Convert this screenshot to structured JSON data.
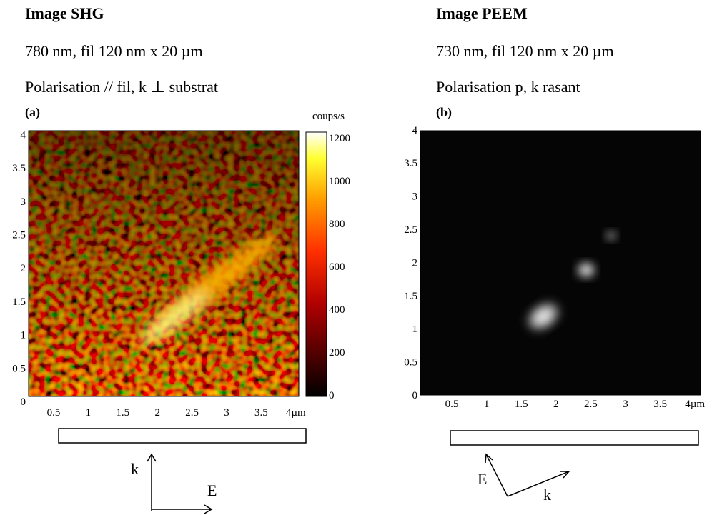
{
  "panels": [
    {
      "title": "Image SHG",
      "line1": "780 nm, fil 120 nm x 20 µm",
      "line2": "Polarisation // fil, k ⊥ substrat",
      "label": "(a)",
      "x_ticks": [
        "0.5",
        "1",
        "1.5",
        "2",
        "2.5",
        "3",
        "3.5",
        "4µm"
      ],
      "y_ticks": [
        "0",
        "0.5",
        "1",
        "1.5",
        "2",
        "2.5",
        "3",
        "3.5",
        "4"
      ],
      "colorbar_title": "coups/s",
      "colorbar_ticks": [
        "0",
        "200",
        "400",
        "600",
        "800",
        "1000",
        "1200"
      ],
      "arrow_labels": [
        "k",
        "E"
      ]
    },
    {
      "title": "Image PEEM",
      "line1": "730 nm, fil 120 nm x 20 µm",
      "line2": "Polarisation p, k rasant",
      "label": "(b)",
      "x_ticks": [
        "0.5",
        "1",
        "1.5",
        "2",
        "2.5",
        "3",
        "3.5",
        "4µm"
      ],
      "y_ticks": [
        "0",
        "0.5",
        "1",
        "1.5",
        "2",
        "2.5",
        "3",
        "3.5",
        "4"
      ],
      "arrow_labels": [
        "E",
        "k"
      ]
    }
  ]
}
